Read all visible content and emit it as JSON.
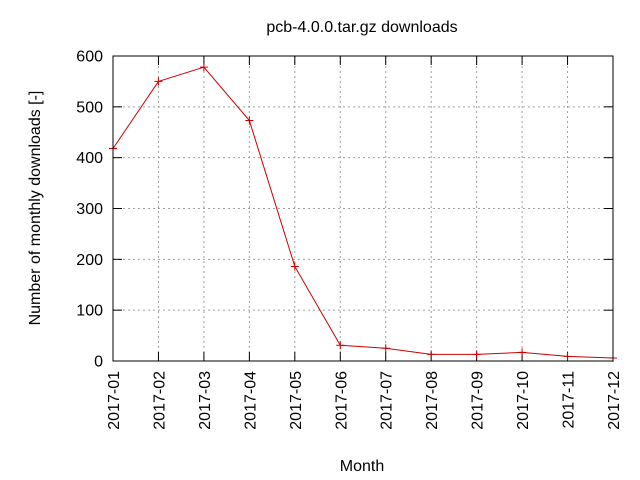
{
  "chart_data": {
    "type": "line",
    "title": "pcb-4.0.0.tar.gz downloads",
    "xlabel": "Month",
    "ylabel": "Number of monthly downloads [-]",
    "x": [
      "2017-01",
      "2017-02",
      "2017-03",
      "2017-04",
      "2017-05",
      "2017-06",
      "2017-07",
      "2017-08",
      "2017-09",
      "2017-10",
      "2017-11",
      "2017-12"
    ],
    "ylim": [
      0,
      600
    ],
    "yticks": [
      0,
      100,
      200,
      300,
      400,
      500,
      600
    ],
    "grid": true,
    "legend": "none",
    "series": [
      {
        "color": "#cc0000",
        "marker": "plus",
        "values": [
          418,
          550,
          578,
          473,
          186,
          31,
          25,
          13,
          13,
          17,
          9,
          6
        ]
      }
    ]
  }
}
